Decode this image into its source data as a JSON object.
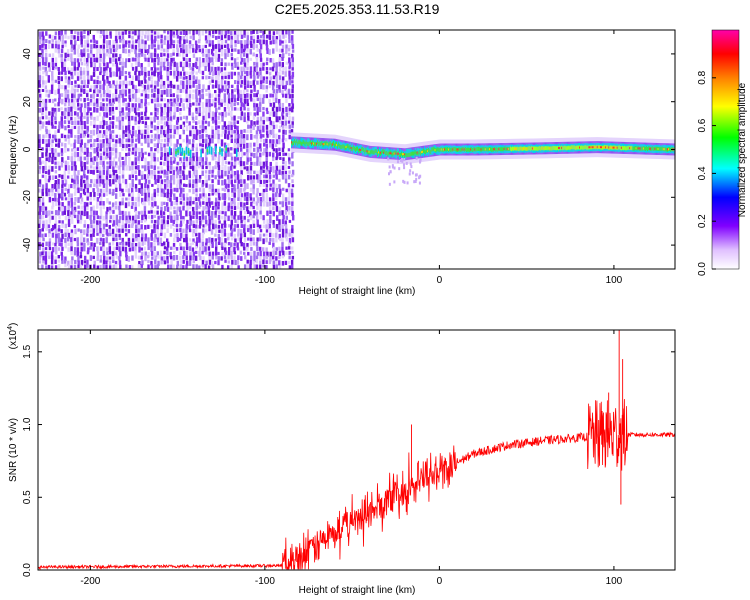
{
  "title": "C2E5.2025.353.11.53.R19",
  "colors": {
    "snr_line": "#ff0000",
    "scatter_points": "#7b1fe0"
  },
  "chart_data": [
    {
      "type": "heatmap",
      "xlabel": "Height of straight line (km)",
      "ylabel": "Frequency (Hz)",
      "xlim": [
        -230,
        135
      ],
      "ylim": [
        -50,
        50
      ],
      "x_ticks": [
        -200,
        -100,
        0,
        100
      ],
      "y_ticks": [
        -40,
        -20,
        0,
        20,
        40
      ],
      "colorbar": {
        "label": "Normalized spectral amplitude",
        "range": [
          0,
          1
        ],
        "ticks": [
          "0.0",
          "0.2",
          "0.4",
          "0.6",
          "0.8"
        ],
        "colormap": [
          "#ffffff",
          "#7f00ff",
          "#0000ff",
          "#00ffff",
          "#00ff00",
          "#ffff00",
          "#ff8000",
          "#ff0000",
          "#ff00aa"
        ]
      },
      "noise_region_x": [
        -230,
        -85
      ],
      "ridge": [
        {
          "x": -85,
          "y": 3
        },
        {
          "x": -60,
          "y": 2
        },
        {
          "x": -40,
          "y": -1
        },
        {
          "x": -20,
          "y": -2
        },
        {
          "x": 0,
          "y": 0
        },
        {
          "x": 20,
          "y": 0
        },
        {
          "x": 60,
          "y": 0.5
        },
        {
          "x": 90,
          "y": 1
        },
        {
          "x": 135,
          "y": 0
        }
      ]
    },
    {
      "type": "line",
      "xlabel": "Height of straight line (km)",
      "ylabel": "SNR (10 * v/v)",
      "y_multiplier": "(x10",
      "y_multiplier_exp": "4",
      "y_multiplier_close": ")",
      "xlim": [
        -230,
        135
      ],
      "ylim": [
        0,
        1.65
      ],
      "x_ticks": [
        -200,
        -100,
        0,
        100
      ],
      "y_ticks": [
        "0.0",
        "0.5",
        "1.0",
        "1.5"
      ],
      "y_tick_values": [
        0,
        0.5,
        1.0,
        1.5
      ],
      "series": [
        {
          "values": [
            {
              "x": -230,
              "y": 0.02
            },
            {
              "x": -90,
              "y": 0.03
            },
            {
              "x": -80,
              "y": 0.1
            },
            {
              "x": -60,
              "y": 0.25
            },
            {
              "x": -40,
              "y": 0.4
            },
            {
              "x": -20,
              "y": 0.55
            },
            {
              "x": 0,
              "y": 0.68
            },
            {
              "x": 20,
              "y": 0.8
            },
            {
              "x": 40,
              "y": 0.86
            },
            {
              "x": 60,
              "y": 0.89
            },
            {
              "x": 80,
              "y": 0.91
            },
            {
              "x": 100,
              "y": 0.93
            },
            {
              "x": 135,
              "y": 0.93
            }
          ]
        }
      ],
      "peaks": [
        {
          "x": -16,
          "y": 1.0
        },
        {
          "x": 97,
          "y": 1.22
        },
        {
          "x": 103,
          "y": 1.65
        },
        {
          "x": 105,
          "y": 1.45
        },
        {
          "x": 104,
          "y": 0.45
        }
      ]
    }
  ]
}
